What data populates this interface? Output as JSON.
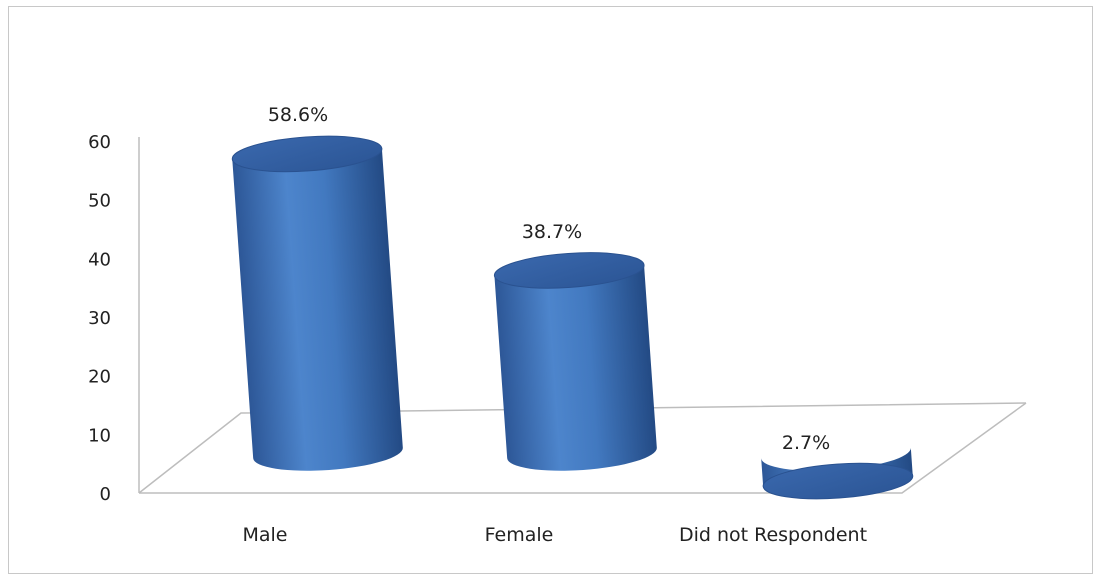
{
  "chart_data": {
    "type": "bar",
    "categories": [
      "Male",
      "Female",
      "Did not Respondent"
    ],
    "values": [
      58.6,
      38.7,
      2.7
    ],
    "data_labels": [
      "58.6%",
      "38.7%",
      "2.7%"
    ],
    "title": "",
    "xlabel": "",
    "ylabel": "",
    "ylim": [
      0,
      60
    ],
    "yticks": [
      "0",
      "10",
      "20",
      "30",
      "40",
      "50",
      "60"
    ],
    "style": "3d-cylinder",
    "bar_color": "#3f72b8",
    "grid": false
  }
}
